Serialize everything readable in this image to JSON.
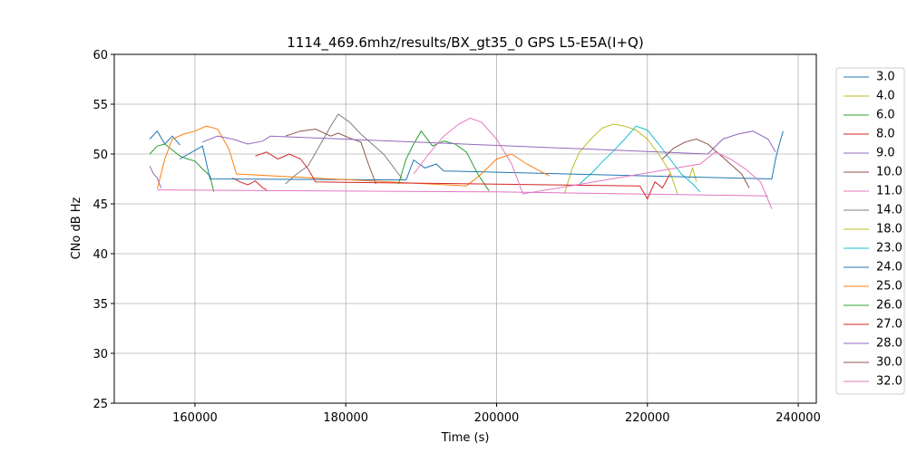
{
  "chart_data": {
    "type": "line",
    "title": "1114_469.6mhz/results/BX_gt35_0 GPS L5-E5A(I+Q)",
    "x_label": "Time (s)",
    "y_label": "CNo dB Hz",
    "xlim": [
      149300,
      242400
    ],
    "ylim": [
      25,
      60
    ],
    "xticks": [
      160000,
      180000,
      200000,
      220000,
      240000
    ],
    "yticks": [
      25,
      30,
      35,
      40,
      45,
      50,
      55,
      60
    ],
    "grid": true,
    "legend": "outside-right",
    "series": [
      {
        "name": "3.0",
        "color": "#1f77b4",
        "x": [
          154000,
          155000,
          156000,
          157000,
          158000
        ],
        "values": [
          51.5,
          52.3,
          51.0,
          51.8,
          50.9
        ]
      },
      {
        "name": "4.0",
        "color": "#bcbd22",
        "x": [
          209000,
          210000,
          211000,
          212500,
          214000,
          215500,
          217000,
          218500,
          220000,
          221500,
          223000,
          224000
        ],
        "values": [
          46.0,
          48.5,
          50.2,
          51.5,
          52.6,
          53.0,
          52.8,
          52.4,
          51.5,
          50.0,
          48.2,
          46.0
        ]
      },
      {
        "name": "6.0",
        "color": "#2ca02c",
        "x": [
          154000,
          155000,
          156000,
          157000,
          158000,
          159000,
          160000,
          161000,
          162000,
          162500
        ],
        "values": [
          50.0,
          50.8,
          51.0,
          50.4,
          49.8,
          49.5,
          49.3,
          48.5,
          47.8,
          46.2
        ]
      },
      {
        "name": "8.0",
        "color": "#d62728",
        "x": [
          165000,
          166000,
          167000,
          168000,
          169000,
          169500
        ],
        "values": [
          47.6,
          47.2,
          46.9,
          47.3,
          46.6,
          46.4
        ]
      },
      {
        "name": "9.0",
        "color": "#9467bd",
        "x": [
          154000,
          154500,
          155000,
          155500
        ],
        "values": [
          48.8,
          48.0,
          47.6,
          46.6
        ]
      },
      {
        "name": "10.0",
        "color": "#8c564b",
        "x": [
          172000,
          174000,
          176000,
          178000,
          179000,
          180500,
          182000,
          183000,
          184000
        ],
        "values": [
          51.8,
          52.3,
          52.5,
          51.8,
          52.1,
          51.6,
          51.2,
          49.0,
          47.0
        ]
      },
      {
        "name": "11.0",
        "color": "#e377c2",
        "x": [
          155000,
          200000,
          236000
        ],
        "values": [
          46.4,
          46.2,
          45.8
        ]
      },
      {
        "name": "14.0",
        "color": "#7f7f7f",
        "x": [
          172000,
          173500,
          175000,
          176500,
          178000,
          179000,
          180500,
          182000,
          183500,
          185000,
          186500,
          187500
        ],
        "values": [
          47.0,
          48.0,
          48.8,
          50.8,
          52.8,
          54.0,
          53.2,
          52.0,
          51.0,
          50.0,
          48.5,
          47.5
        ]
      },
      {
        "name": "18.0",
        "color": "#bcbd22",
        "x": [
          225500,
          226000,
          226500
        ],
        "values": [
          47.5,
          48.6,
          47.2
        ]
      },
      {
        "name": "23.0",
        "color": "#17becf",
        "x": [
          211000,
          212500,
          214000,
          215500,
          217000,
          218500,
          220000,
          221500,
          223000,
          224500,
          226000,
          227000
        ],
        "values": [
          47.0,
          48.0,
          49.2,
          50.3,
          51.5,
          52.8,
          52.4,
          51.0,
          49.5,
          48.0,
          47.0,
          46.2
        ]
      },
      {
        "name": "24.0",
        "color": "#1f77b4",
        "x": [
          158000,
          161000,
          162000,
          188000,
          189000,
          190500,
          192000,
          193000,
          236500,
          237000,
          237500,
          238000
        ],
        "values": [
          49.5,
          50.8,
          47.5,
          47.4,
          49.4,
          48.6,
          49.0,
          48.3,
          47.5,
          49.5,
          51.0,
          52.3
        ]
      },
      {
        "name": "25.0",
        "color": "#ff7f0e",
        "x": [
          155000,
          156000,
          157000,
          158500,
          160000,
          161500,
          163000,
          164500,
          165500,
          196000,
          198000,
          200000,
          202000,
          204000,
          206000,
          207000
        ],
        "values": [
          46.5,
          49.5,
          51.5,
          52.0,
          52.3,
          52.8,
          52.5,
          50.5,
          48.0,
          46.8,
          48.0,
          49.5,
          50.0,
          49.0,
          48.2,
          47.8
        ]
      },
      {
        "name": "26.0",
        "color": "#2ca02c",
        "x": [
          187000,
          188000,
          189000,
          190000,
          191500,
          193000,
          194500,
          196000,
          197500,
          199000
        ],
        "values": [
          47.0,
          49.5,
          51.0,
          52.3,
          50.8,
          51.3,
          51.0,
          50.2,
          48.0,
          46.3
        ]
      },
      {
        "name": "27.0",
        "color": "#d62728",
        "x": [
          168000,
          169500,
          171000,
          172500,
          174000,
          175000,
          176000,
          219000,
          220000,
          221000,
          222000,
          223000
        ],
        "values": [
          49.8,
          50.2,
          49.5,
          50.0,
          49.5,
          48.5,
          47.2,
          46.8,
          45.5,
          47.2,
          46.6,
          48.0
        ]
      },
      {
        "name": "28.0",
        "color": "#9467bd",
        "x": [
          161000,
          163000,
          165000,
          167000,
          169000,
          170000,
          228000,
          230000,
          232000,
          234000,
          236000,
          237000
        ],
        "values": [
          51.2,
          51.8,
          51.5,
          51.0,
          51.3,
          51.8,
          50.0,
          51.5,
          52.0,
          52.3,
          51.5,
          50.2
        ]
      },
      {
        "name": "30.0",
        "color": "#8c564b",
        "x": [
          222000,
          223500,
          225000,
          226500,
          228000,
          229500,
          231000,
          232500,
          233500
        ],
        "values": [
          49.5,
          50.6,
          51.2,
          51.5,
          51.0,
          50.0,
          49.0,
          48.0,
          46.6
        ]
      },
      {
        "name": "32.0",
        "color": "#e377c2",
        "x": [
          189000,
          191000,
          193000,
          195000,
          196500,
          198000,
          200000,
          202000,
          203500,
          227000,
          229000,
          231000,
          233000,
          235000,
          236500
        ],
        "values": [
          48.0,
          50.0,
          51.8,
          53.0,
          53.6,
          53.2,
          51.5,
          49.0,
          46.0,
          49.0,
          50.2,
          49.5,
          48.5,
          47.2,
          44.5
        ]
      }
    ]
  }
}
